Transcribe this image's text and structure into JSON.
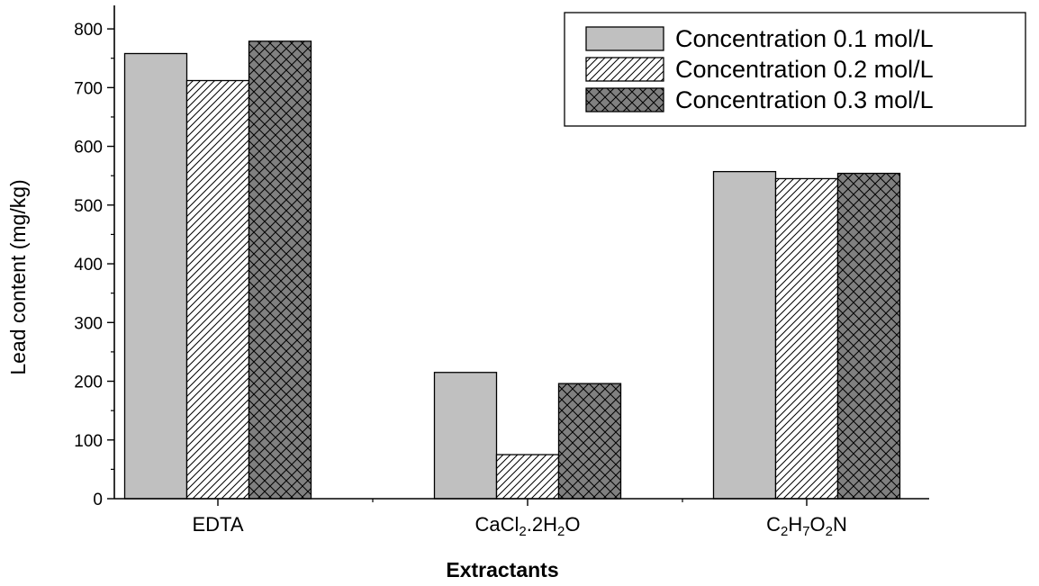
{
  "chart_data": {
    "type": "bar",
    "xlabel": "Extractants",
    "ylabel": "Lead content (mg/kg)",
    "ylim": [
      0,
      840
    ],
    "yticks": [
      0,
      100,
      200,
      300,
      400,
      500,
      600,
      700,
      800
    ],
    "categories": [
      {
        "main": "EDTA",
        "parts": [
          {
            "t": "EDTA",
            "s": ""
          }
        ]
      },
      {
        "main": "CaCl2.2H2O",
        "parts": [
          {
            "t": "CaCl",
            "s": ""
          },
          {
            "t": "2",
            "s": "sub"
          },
          {
            "t": ".2H",
            "s": ""
          },
          {
            "t": "2",
            "s": "sub"
          },
          {
            "t": "O",
            "s": ""
          }
        ]
      },
      {
        "main": "C2H7O2N",
        "parts": [
          {
            "t": "C",
            "s": ""
          },
          {
            "t": "2",
            "s": "sub"
          },
          {
            "t": "H",
            "s": ""
          },
          {
            "t": "7",
            "s": "sub"
          },
          {
            "t": "O",
            "s": ""
          },
          {
            "t": "2",
            "s": "sub"
          },
          {
            "t": "N",
            "s": ""
          }
        ]
      }
    ],
    "series": [
      {
        "name": "Concentration 0.1 mol/L",
        "values": [
          758,
          215,
          557
        ],
        "pattern": "solid",
        "color": "#c0c0c0"
      },
      {
        "name": "Concentration 0.2 mol/L",
        "values": [
          712,
          75,
          545
        ],
        "pattern": "hatch",
        "color": "#ffffff"
      },
      {
        "name": "Concentration 0.3 mol/L",
        "values": [
          779,
          196,
          554
        ],
        "pattern": "crosshatch",
        "color": "#808080"
      }
    ],
    "legend_position": "top-right",
    "grid": false
  }
}
